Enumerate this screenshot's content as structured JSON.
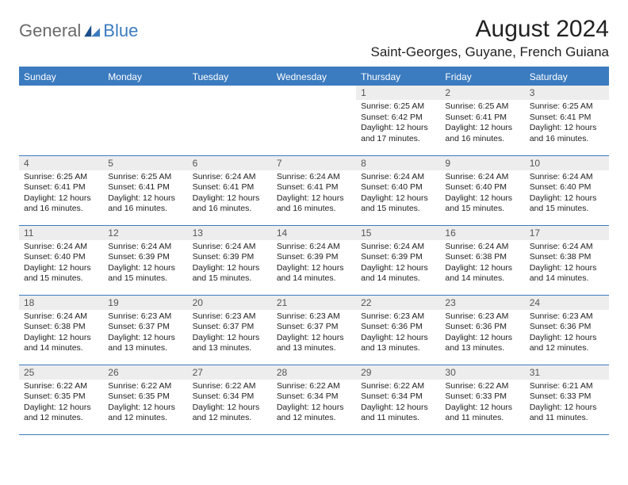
{
  "logo": {
    "general": "General",
    "blue": "Blue"
  },
  "title": "August 2024",
  "location": "Saint-Georges, Guyane, French Guiana",
  "colors": {
    "header_bg": "#3b7bbf",
    "header_text": "#ffffff",
    "daynum_bg": "#ededed",
    "border": "#3b7bbf",
    "logo_gray": "#6a6a6a",
    "logo_blue": "#3b7bbf"
  },
  "weekdays": [
    "Sunday",
    "Monday",
    "Tuesday",
    "Wednesday",
    "Thursday",
    "Friday",
    "Saturday"
  ],
  "weeks": [
    [
      {
        "empty": true
      },
      {
        "empty": true
      },
      {
        "empty": true
      },
      {
        "empty": true
      },
      {
        "n": "1",
        "sr": "Sunrise: 6:25 AM",
        "ss": "Sunset: 6:42 PM",
        "d1": "Daylight: 12 hours",
        "d2": "and 17 minutes."
      },
      {
        "n": "2",
        "sr": "Sunrise: 6:25 AM",
        "ss": "Sunset: 6:41 PM",
        "d1": "Daylight: 12 hours",
        "d2": "and 16 minutes."
      },
      {
        "n": "3",
        "sr": "Sunrise: 6:25 AM",
        "ss": "Sunset: 6:41 PM",
        "d1": "Daylight: 12 hours",
        "d2": "and 16 minutes."
      }
    ],
    [
      {
        "n": "4",
        "sr": "Sunrise: 6:25 AM",
        "ss": "Sunset: 6:41 PM",
        "d1": "Daylight: 12 hours",
        "d2": "and 16 minutes."
      },
      {
        "n": "5",
        "sr": "Sunrise: 6:25 AM",
        "ss": "Sunset: 6:41 PM",
        "d1": "Daylight: 12 hours",
        "d2": "and 16 minutes."
      },
      {
        "n": "6",
        "sr": "Sunrise: 6:24 AM",
        "ss": "Sunset: 6:41 PM",
        "d1": "Daylight: 12 hours",
        "d2": "and 16 minutes."
      },
      {
        "n": "7",
        "sr": "Sunrise: 6:24 AM",
        "ss": "Sunset: 6:41 PM",
        "d1": "Daylight: 12 hours",
        "d2": "and 16 minutes."
      },
      {
        "n": "8",
        "sr": "Sunrise: 6:24 AM",
        "ss": "Sunset: 6:40 PM",
        "d1": "Daylight: 12 hours",
        "d2": "and 15 minutes."
      },
      {
        "n": "9",
        "sr": "Sunrise: 6:24 AM",
        "ss": "Sunset: 6:40 PM",
        "d1": "Daylight: 12 hours",
        "d2": "and 15 minutes."
      },
      {
        "n": "10",
        "sr": "Sunrise: 6:24 AM",
        "ss": "Sunset: 6:40 PM",
        "d1": "Daylight: 12 hours",
        "d2": "and 15 minutes."
      }
    ],
    [
      {
        "n": "11",
        "sr": "Sunrise: 6:24 AM",
        "ss": "Sunset: 6:40 PM",
        "d1": "Daylight: 12 hours",
        "d2": "and 15 minutes."
      },
      {
        "n": "12",
        "sr": "Sunrise: 6:24 AM",
        "ss": "Sunset: 6:39 PM",
        "d1": "Daylight: 12 hours",
        "d2": "and 15 minutes."
      },
      {
        "n": "13",
        "sr": "Sunrise: 6:24 AM",
        "ss": "Sunset: 6:39 PM",
        "d1": "Daylight: 12 hours",
        "d2": "and 15 minutes."
      },
      {
        "n": "14",
        "sr": "Sunrise: 6:24 AM",
        "ss": "Sunset: 6:39 PM",
        "d1": "Daylight: 12 hours",
        "d2": "and 14 minutes."
      },
      {
        "n": "15",
        "sr": "Sunrise: 6:24 AM",
        "ss": "Sunset: 6:39 PM",
        "d1": "Daylight: 12 hours",
        "d2": "and 14 minutes."
      },
      {
        "n": "16",
        "sr": "Sunrise: 6:24 AM",
        "ss": "Sunset: 6:38 PM",
        "d1": "Daylight: 12 hours",
        "d2": "and 14 minutes."
      },
      {
        "n": "17",
        "sr": "Sunrise: 6:24 AM",
        "ss": "Sunset: 6:38 PM",
        "d1": "Daylight: 12 hours",
        "d2": "and 14 minutes."
      }
    ],
    [
      {
        "n": "18",
        "sr": "Sunrise: 6:24 AM",
        "ss": "Sunset: 6:38 PM",
        "d1": "Daylight: 12 hours",
        "d2": "and 14 minutes."
      },
      {
        "n": "19",
        "sr": "Sunrise: 6:23 AM",
        "ss": "Sunset: 6:37 PM",
        "d1": "Daylight: 12 hours",
        "d2": "and 13 minutes."
      },
      {
        "n": "20",
        "sr": "Sunrise: 6:23 AM",
        "ss": "Sunset: 6:37 PM",
        "d1": "Daylight: 12 hours",
        "d2": "and 13 minutes."
      },
      {
        "n": "21",
        "sr": "Sunrise: 6:23 AM",
        "ss": "Sunset: 6:37 PM",
        "d1": "Daylight: 12 hours",
        "d2": "and 13 minutes."
      },
      {
        "n": "22",
        "sr": "Sunrise: 6:23 AM",
        "ss": "Sunset: 6:36 PM",
        "d1": "Daylight: 12 hours",
        "d2": "and 13 minutes."
      },
      {
        "n": "23",
        "sr": "Sunrise: 6:23 AM",
        "ss": "Sunset: 6:36 PM",
        "d1": "Daylight: 12 hours",
        "d2": "and 13 minutes."
      },
      {
        "n": "24",
        "sr": "Sunrise: 6:23 AM",
        "ss": "Sunset: 6:36 PM",
        "d1": "Daylight: 12 hours",
        "d2": "and 12 minutes."
      }
    ],
    [
      {
        "n": "25",
        "sr": "Sunrise: 6:22 AM",
        "ss": "Sunset: 6:35 PM",
        "d1": "Daylight: 12 hours",
        "d2": "and 12 minutes."
      },
      {
        "n": "26",
        "sr": "Sunrise: 6:22 AM",
        "ss": "Sunset: 6:35 PM",
        "d1": "Daylight: 12 hours",
        "d2": "and 12 minutes."
      },
      {
        "n": "27",
        "sr": "Sunrise: 6:22 AM",
        "ss": "Sunset: 6:34 PM",
        "d1": "Daylight: 12 hours",
        "d2": "and 12 minutes."
      },
      {
        "n": "28",
        "sr": "Sunrise: 6:22 AM",
        "ss": "Sunset: 6:34 PM",
        "d1": "Daylight: 12 hours",
        "d2": "and 12 minutes."
      },
      {
        "n": "29",
        "sr": "Sunrise: 6:22 AM",
        "ss": "Sunset: 6:34 PM",
        "d1": "Daylight: 12 hours",
        "d2": "and 11 minutes."
      },
      {
        "n": "30",
        "sr": "Sunrise: 6:22 AM",
        "ss": "Sunset: 6:33 PM",
        "d1": "Daylight: 12 hours",
        "d2": "and 11 minutes."
      },
      {
        "n": "31",
        "sr": "Sunrise: 6:21 AM",
        "ss": "Sunset: 6:33 PM",
        "d1": "Daylight: 12 hours",
        "d2": "and 11 minutes."
      }
    ]
  ]
}
